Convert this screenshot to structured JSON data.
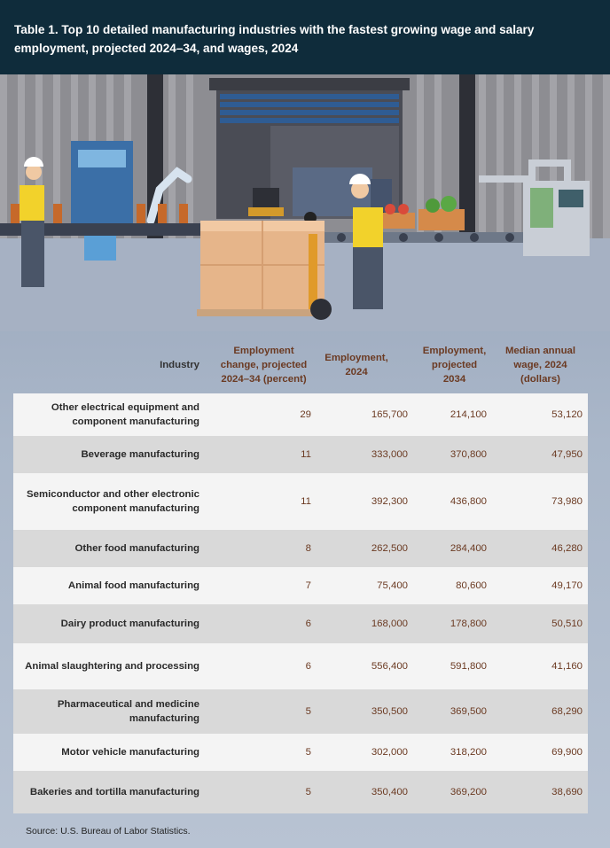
{
  "header": {
    "title": "Table 1. Top 10 detailed manufacturing industries with the fastest growing wage and salary employment, projected 2024–34, and wages, 2024"
  },
  "chart_data": {
    "type": "table",
    "columns": [
      "Industry",
      "Employment change, projected 2024–34 (percent)",
      "Employment, 2024",
      "Employment, projected 2034",
      "Median annual wage, 2024 (dollars)"
    ],
    "rows": [
      {
        "industry": "Other electrical equipment and component manufacturing",
        "change": "29",
        "emp2024": "165,700",
        "emp2034": "214,100",
        "wage": "53,120"
      },
      {
        "industry": "Beverage manufacturing",
        "change": "11",
        "emp2024": "333,000",
        "emp2034": "370,800",
        "wage": "47,950"
      },
      {
        "industry": "Semiconductor and other electronic component manufacturing",
        "change": "11",
        "emp2024": "392,300",
        "emp2034": "436,800",
        "wage": "73,980"
      },
      {
        "industry": "Other food manufacturing",
        "change": "8",
        "emp2024": "262,500",
        "emp2034": "284,400",
        "wage": "46,280"
      },
      {
        "industry": "Animal food manufacturing",
        "change": "7",
        "emp2024": "75,400",
        "emp2034": "80,600",
        "wage": "49,170"
      },
      {
        "industry": "Dairy product manufacturing",
        "change": "6",
        "emp2024": "168,000",
        "emp2034": "178,800",
        "wage": "50,510"
      },
      {
        "industry": "Animal slaughtering and processing",
        "change": "6",
        "emp2024": "556,400",
        "emp2034": "591,800",
        "wage": "41,160"
      },
      {
        "industry": "Pharmaceutical and medicine manufacturing",
        "change": "5",
        "emp2024": "350,500",
        "emp2034": "369,500",
        "wage": "68,290"
      },
      {
        "industry": "Motor vehicle manufacturing",
        "change": "5",
        "emp2024": "302,000",
        "emp2034": "318,200",
        "wage": "69,900"
      },
      {
        "industry": "Bakeries and tortilla manufacturing",
        "change": "5",
        "emp2024": "350,400",
        "emp2034": "369,200",
        "wage": "38,690"
      }
    ]
  },
  "table_head": {
    "industry": "Industry",
    "change_l1": "Employment",
    "change_l2": "change, projected",
    "change_l3": "2024–34 (percent)",
    "emp_l1": "Employment,",
    "emp_l2": "2024",
    "proj_l1": "Employment,",
    "proj_l2": "projected",
    "proj_l3": "2034",
    "wage_l1": "Median annual",
    "wage_l2": "wage, 2024",
    "wage_l3": "(dollars)"
  },
  "row_labels": [
    [
      "Other electrical equipment and",
      "component manufacturing"
    ],
    [
      "Beverage manufacturing"
    ],
    [
      "Semiconductor and other electronic",
      "component manufacturing"
    ],
    [
      "Other food manufacturing"
    ],
    [
      "Animal food manufacturing"
    ],
    [
      "Dairy product manufacturing"
    ],
    [
      "Animal slaughtering and processing"
    ],
    [
      "Pharmaceutical and medicine",
      "manufacturing"
    ],
    [
      "Motor vehicle manufacturing"
    ],
    [
      "Bakeries and tortilla manufacturing"
    ]
  ],
  "source": "Source: U.S. Bureau of Labor Statistics.",
  "colors": {
    "header_bg": "#0f2c3b",
    "accent_text": "#6b3a22",
    "row_light": "#f4f4f4",
    "row_dark": "#d9d9d9"
  },
  "icons": [
    "factory-illustration-icon",
    "worker-icon",
    "forklift-icon",
    "conveyor-icon",
    "robot-arm-icon",
    "pallet-jack-icon"
  ]
}
